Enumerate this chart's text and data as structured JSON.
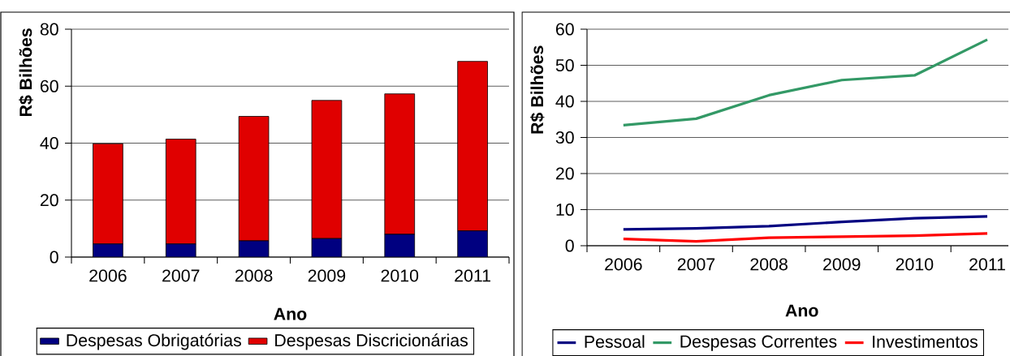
{
  "chart_data": [
    {
      "type": "bar",
      "stacked": true,
      "xlabel": "Ano",
      "ylabel": "R$ Bilhões",
      "categories": [
        "2006",
        "2007",
        "2008",
        "2009",
        "2010",
        "2011"
      ],
      "series": [
        {
          "name": "Despesas Obrigatórias",
          "color": "#000080",
          "values": [
            4.6,
            4.6,
            5.7,
            6.5,
            8.0,
            9.2
          ]
        },
        {
          "name": "Despesas Discricionárias",
          "color": "#e00000",
          "values": [
            35.2,
            36.8,
            43.7,
            48.5,
            49.3,
            59.5
          ]
        }
      ],
      "ylim": [
        0,
        80
      ],
      "yticks": [
        0,
        20,
        40,
        60,
        80
      ],
      "grid": "y",
      "legend": "bottom"
    },
    {
      "type": "line",
      "xlabel": "Ano",
      "ylabel": "R$ Bilhões",
      "categories": [
        "2006",
        "2007",
        "2008",
        "2009",
        "2010",
        "2011"
      ],
      "series": [
        {
          "name": "Pessoal",
          "color": "#000080",
          "values": [
            4.5,
            4.8,
            5.4,
            6.6,
            7.6,
            8.1
          ]
        },
        {
          "name": "Despesas Correntes",
          "color": "#339966",
          "values": [
            33.4,
            35.2,
            41.7,
            45.9,
            47.2,
            57.1
          ]
        },
        {
          "name": "Investimentos",
          "color": "#ff0000",
          "values": [
            1.9,
            1.2,
            2.2,
            2.5,
            2.8,
            3.4
          ]
        }
      ],
      "ylim": [
        0,
        60
      ],
      "yticks": [
        0,
        10,
        20,
        30,
        40,
        50,
        60
      ],
      "grid": "y",
      "legend": "bottom",
      "marker": "none",
      "line_style": "solid"
    }
  ]
}
